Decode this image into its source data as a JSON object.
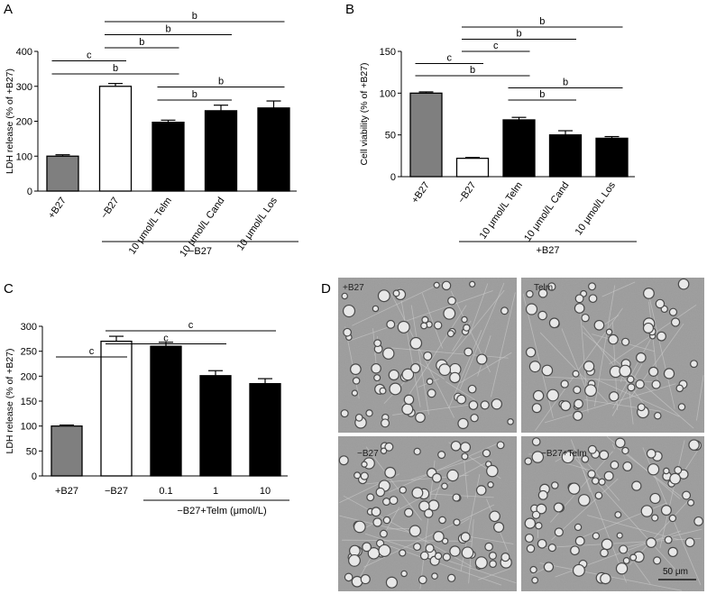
{
  "panels": {
    "A": "A",
    "B": "B",
    "C": "C",
    "D": "D"
  },
  "chart_data": [
    {
      "id": "A",
      "type": "bar",
      "ylabel": "LDH release (% of +B27)",
      "ylim": [
        0,
        400
      ],
      "yticks": [
        0,
        100,
        200,
        300,
        400
      ],
      "categories": [
        "+B27",
        "−B27",
        "10 μmol/L Telm",
        "10 μmol/L Cand",
        "10 μmol/L Los"
      ],
      "values": [
        100,
        300,
        197,
        230,
        238
      ],
      "errors": [
        4,
        8,
        6,
        16,
        20
      ],
      "bar_colors": [
        "#7f7f7f",
        "#ffffff",
        "#000000",
        "#000000",
        "#000000"
      ],
      "rotated_labels": true,
      "group_label": "−B27",
      "group_span": [
        2,
        4
      ],
      "significance": [
        {
          "from": 0,
          "to": 1,
          "label": "c"
        },
        {
          "from": 0,
          "to": 2,
          "label": "b"
        },
        {
          "from": 1,
          "to": 2,
          "label": "b"
        },
        {
          "from": 1,
          "to": 3,
          "label": "b"
        },
        {
          "from": 1,
          "to": 4,
          "label": "b"
        },
        {
          "from": 2,
          "to": 3,
          "label": "b"
        },
        {
          "from": 2,
          "to": 4,
          "label": "b"
        }
      ]
    },
    {
      "id": "B",
      "type": "bar",
      "ylabel": "Cell viability (% of +B27)",
      "ylim": [
        0,
        150
      ],
      "yticks": [
        0,
        50,
        100,
        150
      ],
      "categories": [
        "+B27",
        "−B27",
        "10 μmol/L Telm",
        "10 μmol/L Cand",
        "10 μmol/L Los"
      ],
      "values": [
        100,
        22,
        68,
        50,
        46
      ],
      "errors": [
        1.5,
        1,
        3,
        5,
        2
      ],
      "bar_colors": [
        "#7f7f7f",
        "#ffffff",
        "#000000",
        "#000000",
        "#000000"
      ],
      "rotated_labels": true,
      "group_label": "+B27",
      "group_span": [
        2,
        4
      ],
      "significance": [
        {
          "from": 0,
          "to": 1,
          "label": "c"
        },
        {
          "from": 0,
          "to": 2,
          "label": "b"
        },
        {
          "from": 1,
          "to": 2,
          "label": "c"
        },
        {
          "from": 1,
          "to": 3,
          "label": "b"
        },
        {
          "from": 1,
          "to": 4,
          "label": "b"
        },
        {
          "from": 2,
          "to": 3,
          "label": "b"
        },
        {
          "from": 2,
          "to": 4,
          "label": "b"
        }
      ]
    },
    {
      "id": "C",
      "type": "bar",
      "ylabel": "LDH release (% of +B27)",
      "ylim": [
        0,
        300
      ],
      "yticks": [
        0,
        50,
        100,
        150,
        200,
        250,
        300
      ],
      "categories": [
        "+B27",
        "−B27",
        "0.1",
        "1",
        "10"
      ],
      "values": [
        100,
        270,
        260,
        201,
        185
      ],
      "errors": [
        2,
        10,
        8,
        10,
        10
      ],
      "bar_colors": [
        "#7f7f7f",
        "#ffffff",
        "#000000",
        "#000000",
        "#000000"
      ],
      "rotated_labels": false,
      "group_label": "−B27+Telm (μmol/L)",
      "group_span": [
        2,
        4
      ],
      "significance": [
        {
          "from": 0,
          "to": 1,
          "label": "c"
        },
        {
          "from": 1,
          "to": 3,
          "label": "c"
        },
        {
          "from": 1,
          "to": 4,
          "label": "c"
        }
      ]
    }
  ],
  "micrographs": [
    {
      "label": "+B27"
    },
    {
      "label": "Telm"
    },
    {
      "label": "−B27"
    },
    {
      "label": "−B27+Telm"
    }
  ],
  "scale_bar": "50 μm"
}
